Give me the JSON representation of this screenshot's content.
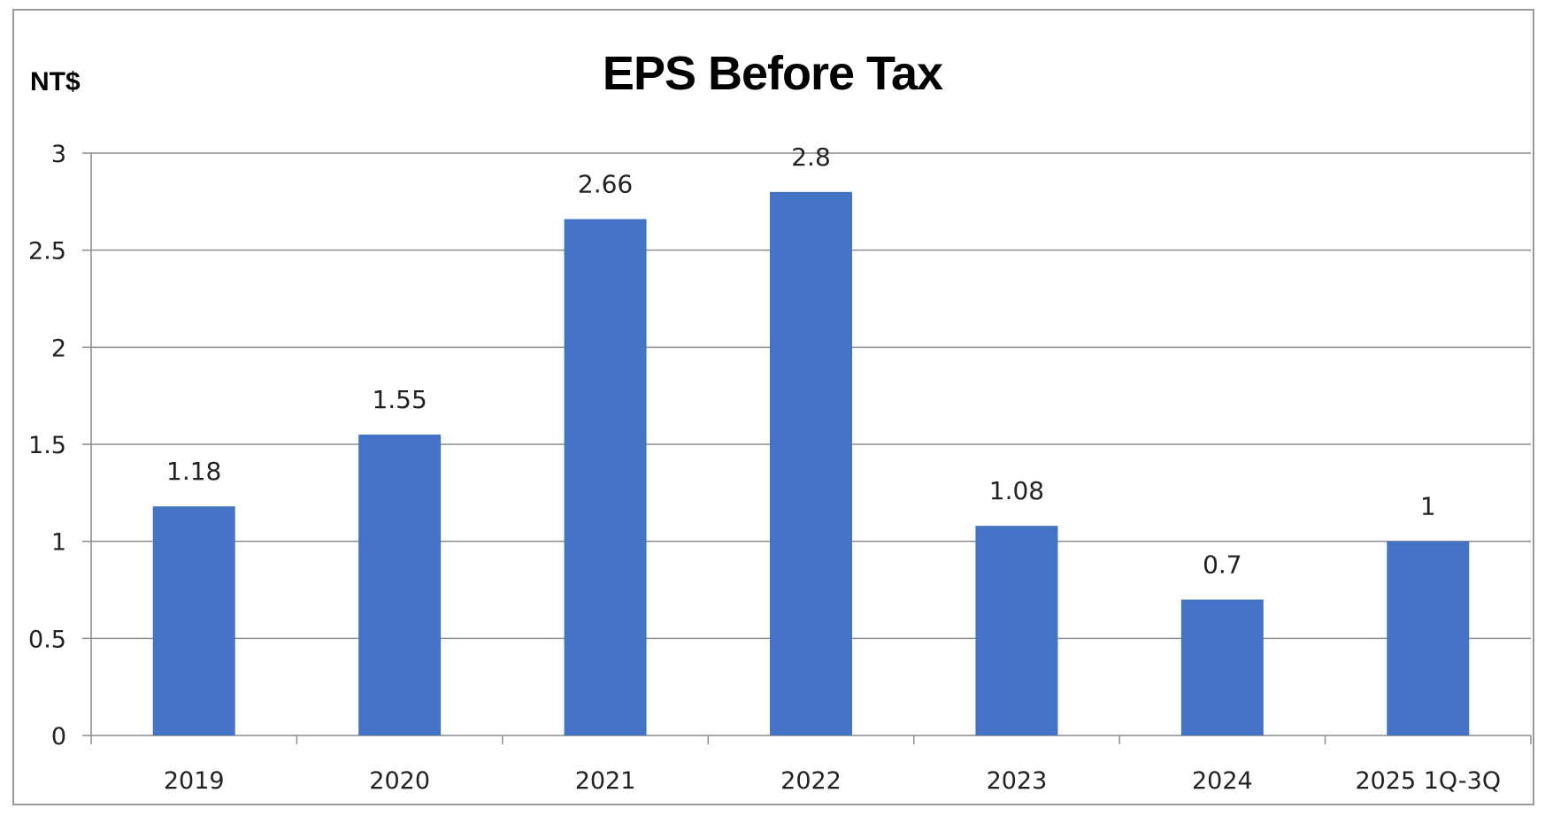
{
  "chart_data": {
    "type": "bar",
    "title": "EPS Before Tax",
    "ylabel": "NT$",
    "xlabel": "",
    "categories": [
      "2019",
      "2020",
      "2021",
      "2022",
      "2023",
      "2024",
      "2025 1Q-3Q"
    ],
    "values": [
      1.18,
      1.55,
      2.66,
      2.8,
      1.08,
      0.7,
      1
    ],
    "data_labels": [
      "1.18",
      "1.55",
      "2.66",
      "2.8",
      "1.08",
      "0.7",
      "1"
    ],
    "ylim": [
      0,
      3
    ],
    "yticks": [
      0,
      0.5,
      1,
      1.5,
      2,
      2.5,
      3
    ],
    "ytick_labels": [
      "0",
      "0.5",
      "1",
      "1.5",
      "2",
      "2.5",
      "3"
    ],
    "grid": true,
    "legend": "none",
    "bar_color": "#4472C4",
    "grid_color": "#8c8c8c"
  }
}
